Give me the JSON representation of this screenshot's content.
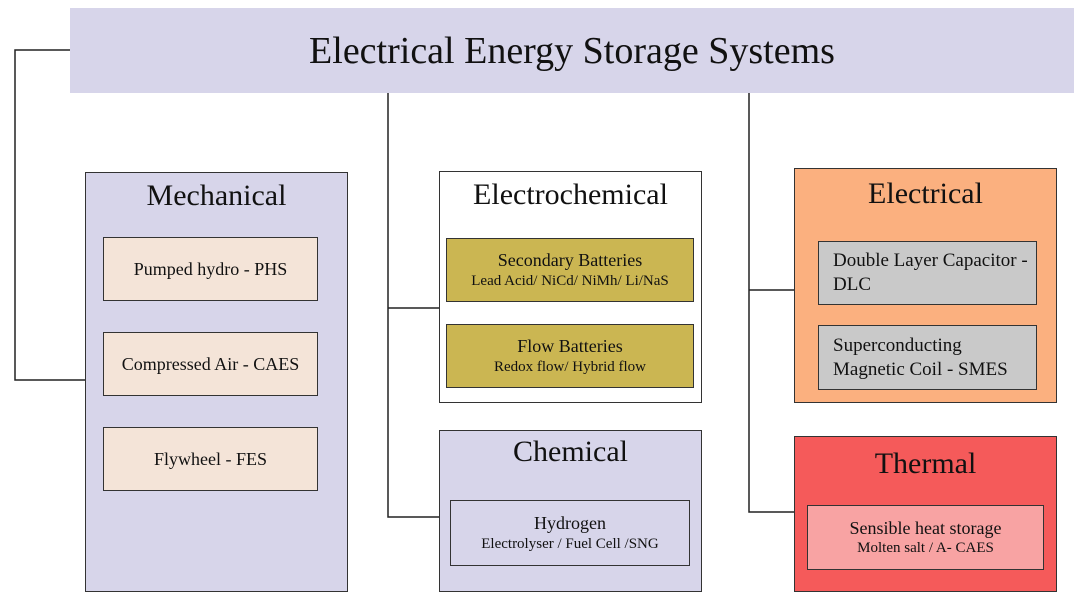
{
  "title": "Electrical Energy Storage Systems",
  "groups": [
    {
      "heading": "Mechanical",
      "items": [
        {
          "name": "Pumped hydro - PHS"
        },
        {
          "name": "Compressed Air - CAES"
        },
        {
          "name": "Flywheel - FES"
        }
      ]
    },
    {
      "heading": "Electrochemical",
      "items": [
        {
          "name": "Secondary Batteries",
          "detail": "Lead Acid/ NiCd/ NiMh/ Li/NaS"
        },
        {
          "name": "Flow Batteries",
          "detail": "Redox flow/ Hybrid flow"
        }
      ]
    },
    {
      "heading": "Chemical",
      "items": [
        {
          "name": "Hydrogen",
          "detail": "Electrolyser / Fuel Cell /SNG"
        }
      ]
    },
    {
      "heading": "Electrical",
      "items": [
        {
          "name": "Double Layer Capacitor - DLC"
        },
        {
          "name": "Superconducting Magnetic Coil - SMES"
        }
      ]
    },
    {
      "heading": "Thermal",
      "items": [
        {
          "name": "Sensible heat storage",
          "detail": "Molten salt / A- CAES"
        }
      ]
    }
  ]
}
